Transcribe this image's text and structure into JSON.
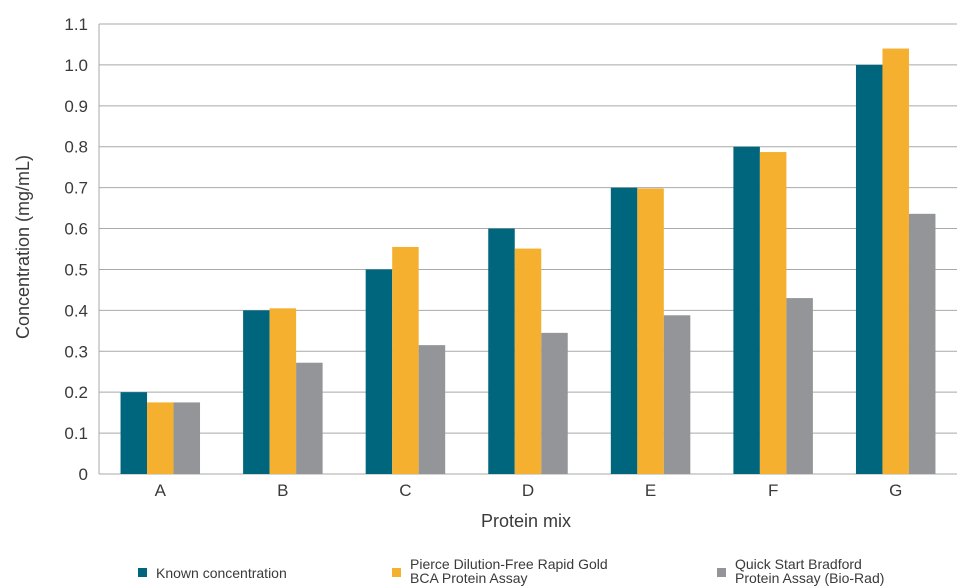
{
  "chart_data": {
    "type": "bar",
    "title": "",
    "xlabel": "Protein mix",
    "ylabel": "Concentration (mg/mL)",
    "ylim": [
      0,
      1.1
    ],
    "yticks": [
      "0",
      "0.1",
      "0.2",
      "0.3",
      "0.4",
      "0.5",
      "0.6",
      "0.7",
      "0.8",
      "0.9",
      "1.0",
      "1.1"
    ],
    "grid": true,
    "legend_position": "bottom",
    "categories": [
      "A",
      "B",
      "C",
      "D",
      "E",
      "F",
      "G"
    ],
    "series": [
      {
        "name": "Known concentration",
        "color": "#00667e",
        "values": [
          0.2,
          0.4,
          0.5,
          0.6,
          0.7,
          0.8,
          1.0
        ]
      },
      {
        "name": "Pierce Dilution-Free Rapid Gold BCA Protein Assay",
        "legend_lines": [
          "Pierce Dilution-Free Rapid Gold",
          "BCA Protein Assay"
        ],
        "color": "#f5b030",
        "values": [
          0.175,
          0.405,
          0.555,
          0.551,
          0.698,
          0.787,
          1.04
        ]
      },
      {
        "name": "Quick Start Bradford Protein Assay (Bio-Rad)",
        "legend_lines": [
          "Quick Start Bradford",
          "Protein Assay (Bio-Rad)"
        ],
        "color": "#949598",
        "values": [
          0.175,
          0.272,
          0.315,
          0.345,
          0.388,
          0.43,
          0.636
        ]
      }
    ]
  }
}
